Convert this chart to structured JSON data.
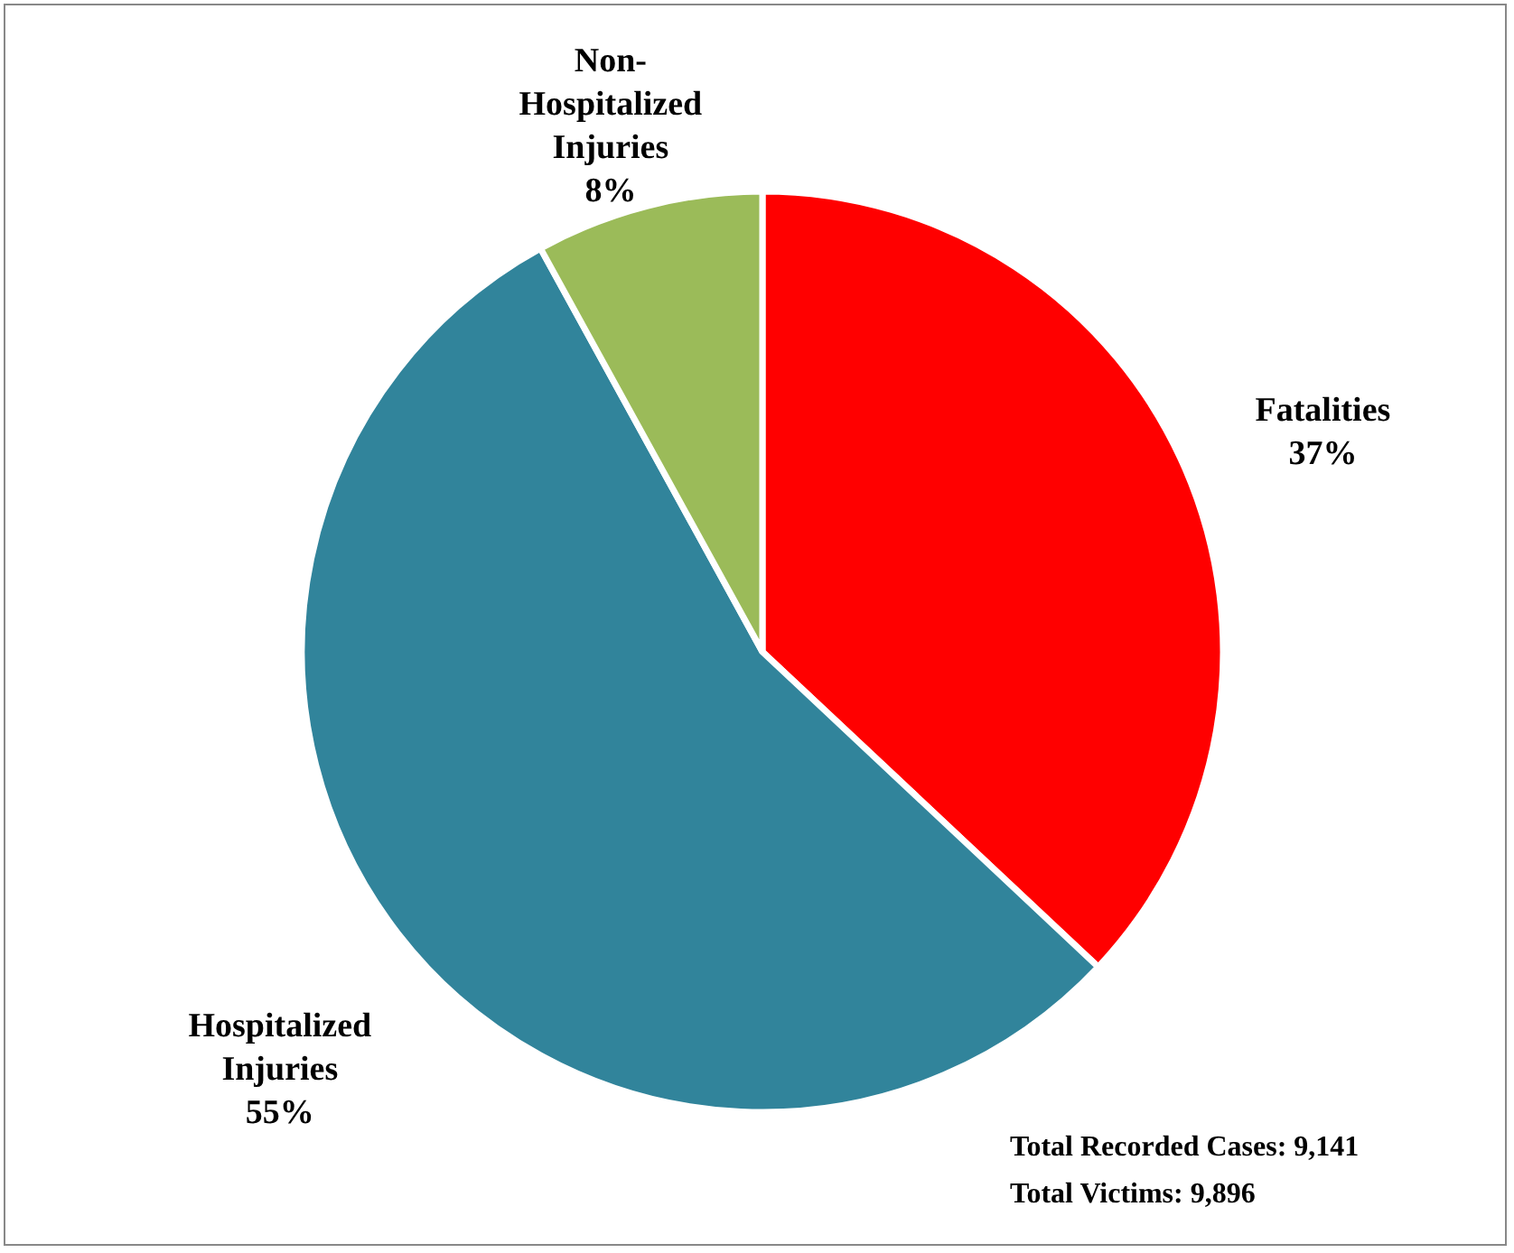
{
  "chart_data": {
    "type": "pie",
    "categories": [
      "Fatalities",
      "Hospitalized Injuries",
      "Non-Hospitalized Injuries"
    ],
    "values": [
      37,
      55,
      8
    ],
    "colors": [
      "#ff0000",
      "#31849b",
      "#9bbb59"
    ],
    "value_labels": [
      "37%",
      "55%",
      "8%"
    ],
    "annotations": [
      "Total Recorded Cases: 9,141",
      "Total Victims: 9,896"
    ]
  }
}
